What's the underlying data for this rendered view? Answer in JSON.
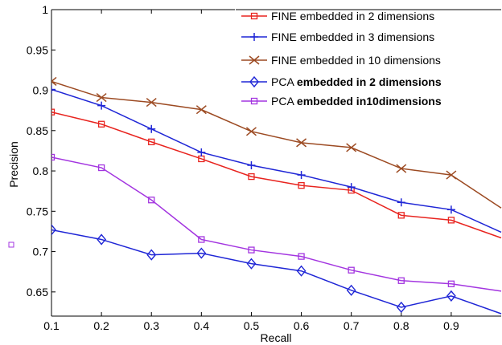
{
  "chart_data": {
    "type": "line",
    "xlabel": "Recall",
    "ylabel": "Precision",
    "xlim": [
      0.1,
      1.0
    ],
    "ylim": [
      0.62,
      1.0
    ],
    "xticks": [
      "0.1",
      "0.2",
      "0.3",
      "0.4",
      "0.5",
      "0.6",
      "0.7",
      "0.8",
      "0.9"
    ],
    "yticks": [
      "0.65",
      "0.7",
      "0.75",
      "0.8",
      "0.85",
      "0.9",
      "0.95",
      "1"
    ],
    "grid": false,
    "legend_position": "top-right",
    "x": [
      0.1,
      0.2,
      0.3,
      0.4,
      0.5,
      0.6,
      0.7,
      0.8,
      0.9,
      1.0
    ],
    "series": [
      {
        "name": "FINE embedded in 2 dimensions",
        "legend_prefix": "FINE embedded in 2 dimensions",
        "legend_suffix": "",
        "color": "#e8241f",
        "marker": "square",
        "values": [
          0.873,
          0.858,
          0.836,
          0.815,
          0.793,
          0.782,
          0.776,
          0.745,
          0.739,
          0.717
        ]
      },
      {
        "name": "FINE embedded in 3 dimensions",
        "legend_prefix": "FINE embedded in 3 dimensions",
        "legend_suffix": "",
        "color": "#1f26d6",
        "marker": "plus",
        "values": [
          0.901,
          0.881,
          0.852,
          0.823,
          0.807,
          0.795,
          0.78,
          0.761,
          0.752,
          0.724
        ]
      },
      {
        "name": "FINE embedded in 10 dimensions",
        "legend_prefix": "FINE embedded in 10 dimensions",
        "legend_suffix": "",
        "color": "#9c4a22",
        "marker": "x",
        "values": [
          0.911,
          0.891,
          0.885,
          0.876,
          0.849,
          0.835,
          0.829,
          0.803,
          0.795,
          0.754
        ]
      },
      {
        "name": "PCA embedded in 2 dimensions",
        "legend_prefix": "PCA ",
        "legend_suffix": "embedded in 2 dimensions",
        "color": "#1f26d6",
        "marker": "diamond",
        "values": [
          0.727,
          0.715,
          0.696,
          0.698,
          0.685,
          0.676,
          0.652,
          0.631,
          0.645,
          0.623
        ]
      },
      {
        "name": "PCA embedded in10dimensions",
        "legend_prefix": "PCA ",
        "legend_suffix": "embedded in10dimensions",
        "color": "#a335e0",
        "marker": "square",
        "values": [
          0.817,
          0.804,
          0.764,
          0.715,
          0.702,
          0.694,
          0.677,
          0.664,
          0.66,
          0.651
        ]
      }
    ]
  }
}
